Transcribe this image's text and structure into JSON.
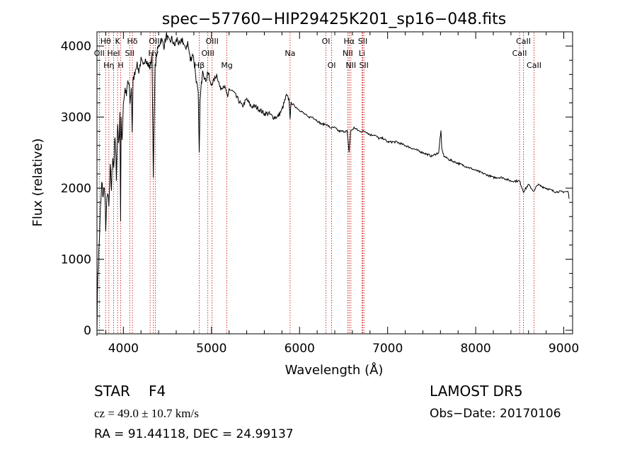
{
  "chart_data": {
    "type": "line",
    "title": "spec−57760−HIP29425K201_sp16−048.fits",
    "xlabel": "Wavelength (Å)",
    "ylabel": "Flux (relative)",
    "xlim": [
      3700,
      9100
    ],
    "ylim": [
      -50,
      4200
    ],
    "xticks": [
      {
        "value": 4000,
        "label": "4000"
      },
      {
        "value": 5000,
        "label": "5000"
      },
      {
        "value": 6000,
        "label": "6000"
      },
      {
        "value": 7000,
        "label": "7000"
      },
      {
        "value": 8000,
        "label": "8000"
      },
      {
        "value": 9000,
        "label": "9000"
      }
    ],
    "yticks": [
      {
        "value": 0,
        "label": "0"
      },
      {
        "value": 1000,
        "label": "1000"
      },
      {
        "value": 2000,
        "label": "2000"
      },
      {
        "value": 3000,
        "label": "3000"
      },
      {
        "value": 4000,
        "label": "4000"
      }
    ],
    "line_color": "#000000",
    "marker_color": "#cc0000",
    "spectrum": {
      "x": [
        3700,
        3710,
        3725,
        3740,
        3755,
        3770,
        3790,
        3800,
        3820,
        3835,
        3850,
        3865,
        3880,
        3890,
        3905,
        3920,
        3935,
        3950,
        3960,
        3968,
        3975,
        3985,
        4000,
        4020,
        4035,
        4050,
        4065,
        4075,
        4090,
        4100,
        4110,
        4125,
        4150,
        4175,
        4200,
        4225,
        4250,
        4275,
        4300,
        4325,
        4340,
        4360,
        4380,
        4400,
        4430,
        4460,
        4490,
        4520,
        4550,
        4580,
        4610,
        4640,
        4670,
        4700,
        4730,
        4760,
        4790,
        4820,
        4840,
        4850,
        4861,
        4870,
        4885,
        4900,
        4930,
        4960,
        4990,
        5020,
        5060,
        5100,
        5140,
        5170,
        5184,
        5200,
        5250,
        5300,
        5350,
        5400,
        5450,
        5500,
        5550,
        5600,
        5650,
        5700,
        5750,
        5800,
        5850,
        5880,
        5893,
        5905,
        5950,
        6000,
        6050,
        6100,
        6150,
        6200,
        6250,
        6300,
        6350,
        6400,
        6450,
        6500,
        6540,
        6563,
        6580,
        6620,
        6680,
        6750,
        6800,
        6850,
        6900,
        6950,
        7000,
        7100,
        7200,
        7300,
        7400,
        7500,
        7580,
        7595,
        7605,
        7615,
        7640,
        7700,
        7800,
        7900,
        8000,
        8100,
        8200,
        8300,
        8400,
        8498,
        8542,
        8600,
        8662,
        8700,
        8800,
        8900,
        9000,
        9050,
        9060
      ],
      "y": [
        30,
        800,
        1200,
        1700,
        2050,
        1900,
        2000,
        1400,
        2000,
        1700,
        2250,
        2000,
        2500,
        2300,
        2700,
        2200,
        2900,
        2600,
        3100,
        1500,
        3000,
        2700,
        3200,
        3400,
        3300,
        3500,
        3450,
        3200,
        3400,
        2800,
        3500,
        3600,
        3750,
        3650,
        3800,
        3700,
        3850,
        3750,
        3700,
        3850,
        2200,
        3700,
        3900,
        4000,
        4100,
        4000,
        4150,
        4050,
        4100,
        4000,
        4100,
        4000,
        4100,
        3950,
        4050,
        3800,
        3900,
        3600,
        3400,
        3300,
        2450,
        3200,
        3450,
        3700,
        3500,
        3650,
        3450,
        3500,
        3600,
        3400,
        3450,
        3350,
        3250,
        3400,
        3350,
        3250,
        3150,
        3250,
        3150,
        3150,
        3100,
        3050,
        3050,
        3000,
        3000,
        3100,
        3300,
        3250,
        3000,
        3200,
        3150,
        3100,
        3050,
        3000,
        3000,
        2950,
        2900,
        2900,
        2850,
        2850,
        2800,
        2800,
        2800,
        2500,
        2800,
        2850,
        2800,
        2800,
        2750,
        2750,
        2700,
        2700,
        2650,
        2650,
        2600,
        2550,
        2500,
        2450,
        2500,
        2700,
        2800,
        2550,
        2450,
        2400,
        2350,
        2300,
        2250,
        2200,
        2150,
        2150,
        2100,
        2100,
        1950,
        2050,
        1950,
        2050,
        2000,
        1950,
        1950,
        1950,
        1850
      ]
    },
    "lines": [
      {
        "x": 3727,
        "label": "OII",
        "row": 2
      },
      {
        "x": 3798,
        "label": "Hθ",
        "row": 1
      },
      {
        "x": 3835,
        "label": "Hη",
        "row": 3
      },
      {
        "x": 3889,
        "label": "HeI",
        "row": 2
      },
      {
        "x": 3934,
        "label": "K",
        "row": 1
      },
      {
        "x": 3969,
        "label": "H",
        "row": 3
      },
      {
        "x": 4072,
        "label": "SII",
        "row": 2
      },
      {
        "x": 4102,
        "label": "Hδ",
        "row": 1
      },
      {
        "x": 4304,
        "label": "G",
        "row": 3
      },
      {
        "x": 4341,
        "label": "Hγ",
        "row": 2
      },
      {
        "x": 4363,
        "label": "OIII",
        "row": 1
      },
      {
        "x": 4861,
        "label": "Hβ",
        "row": 3
      },
      {
        "x": 4959,
        "label": "OIII",
        "row": 2
      },
      {
        "x": 5007,
        "label": "OIII",
        "row": 1
      },
      {
        "x": 5175,
        "label": "Mg",
        "row": 3
      },
      {
        "x": 5893,
        "label": "Na",
        "row": 2
      },
      {
        "x": 6300,
        "label": "OI",
        "row": 1
      },
      {
        "x": 6364,
        "label": "OI",
        "row": 3
      },
      {
        "x": 6548,
        "label": "NII",
        "row": 2
      },
      {
        "x": 6563,
        "label": "Hα",
        "row": 1
      },
      {
        "x": 6583,
        "label": "NII",
        "row": 3
      },
      {
        "x": 6708,
        "label": "Li",
        "row": 2
      },
      {
        "x": 6717,
        "label": "SII",
        "row": 1
      },
      {
        "x": 6731,
        "label": "SII",
        "row": 3
      },
      {
        "x": 8498,
        "label": "CaII",
        "row": 2
      },
      {
        "x": 8542,
        "label": "CaII",
        "row": 1
      },
      {
        "x": 8662,
        "label": "CaII",
        "row": 3
      }
    ]
  },
  "footer": {
    "object_class": "STAR",
    "subclass": "F4",
    "survey": "LAMOST DR5",
    "redshift": "cz = 49.0 ± 10.7 km/s",
    "obs_date": "Obs−Date: 20170106",
    "coordinates": "RA =  91.44118, DEC =  24.99137"
  }
}
